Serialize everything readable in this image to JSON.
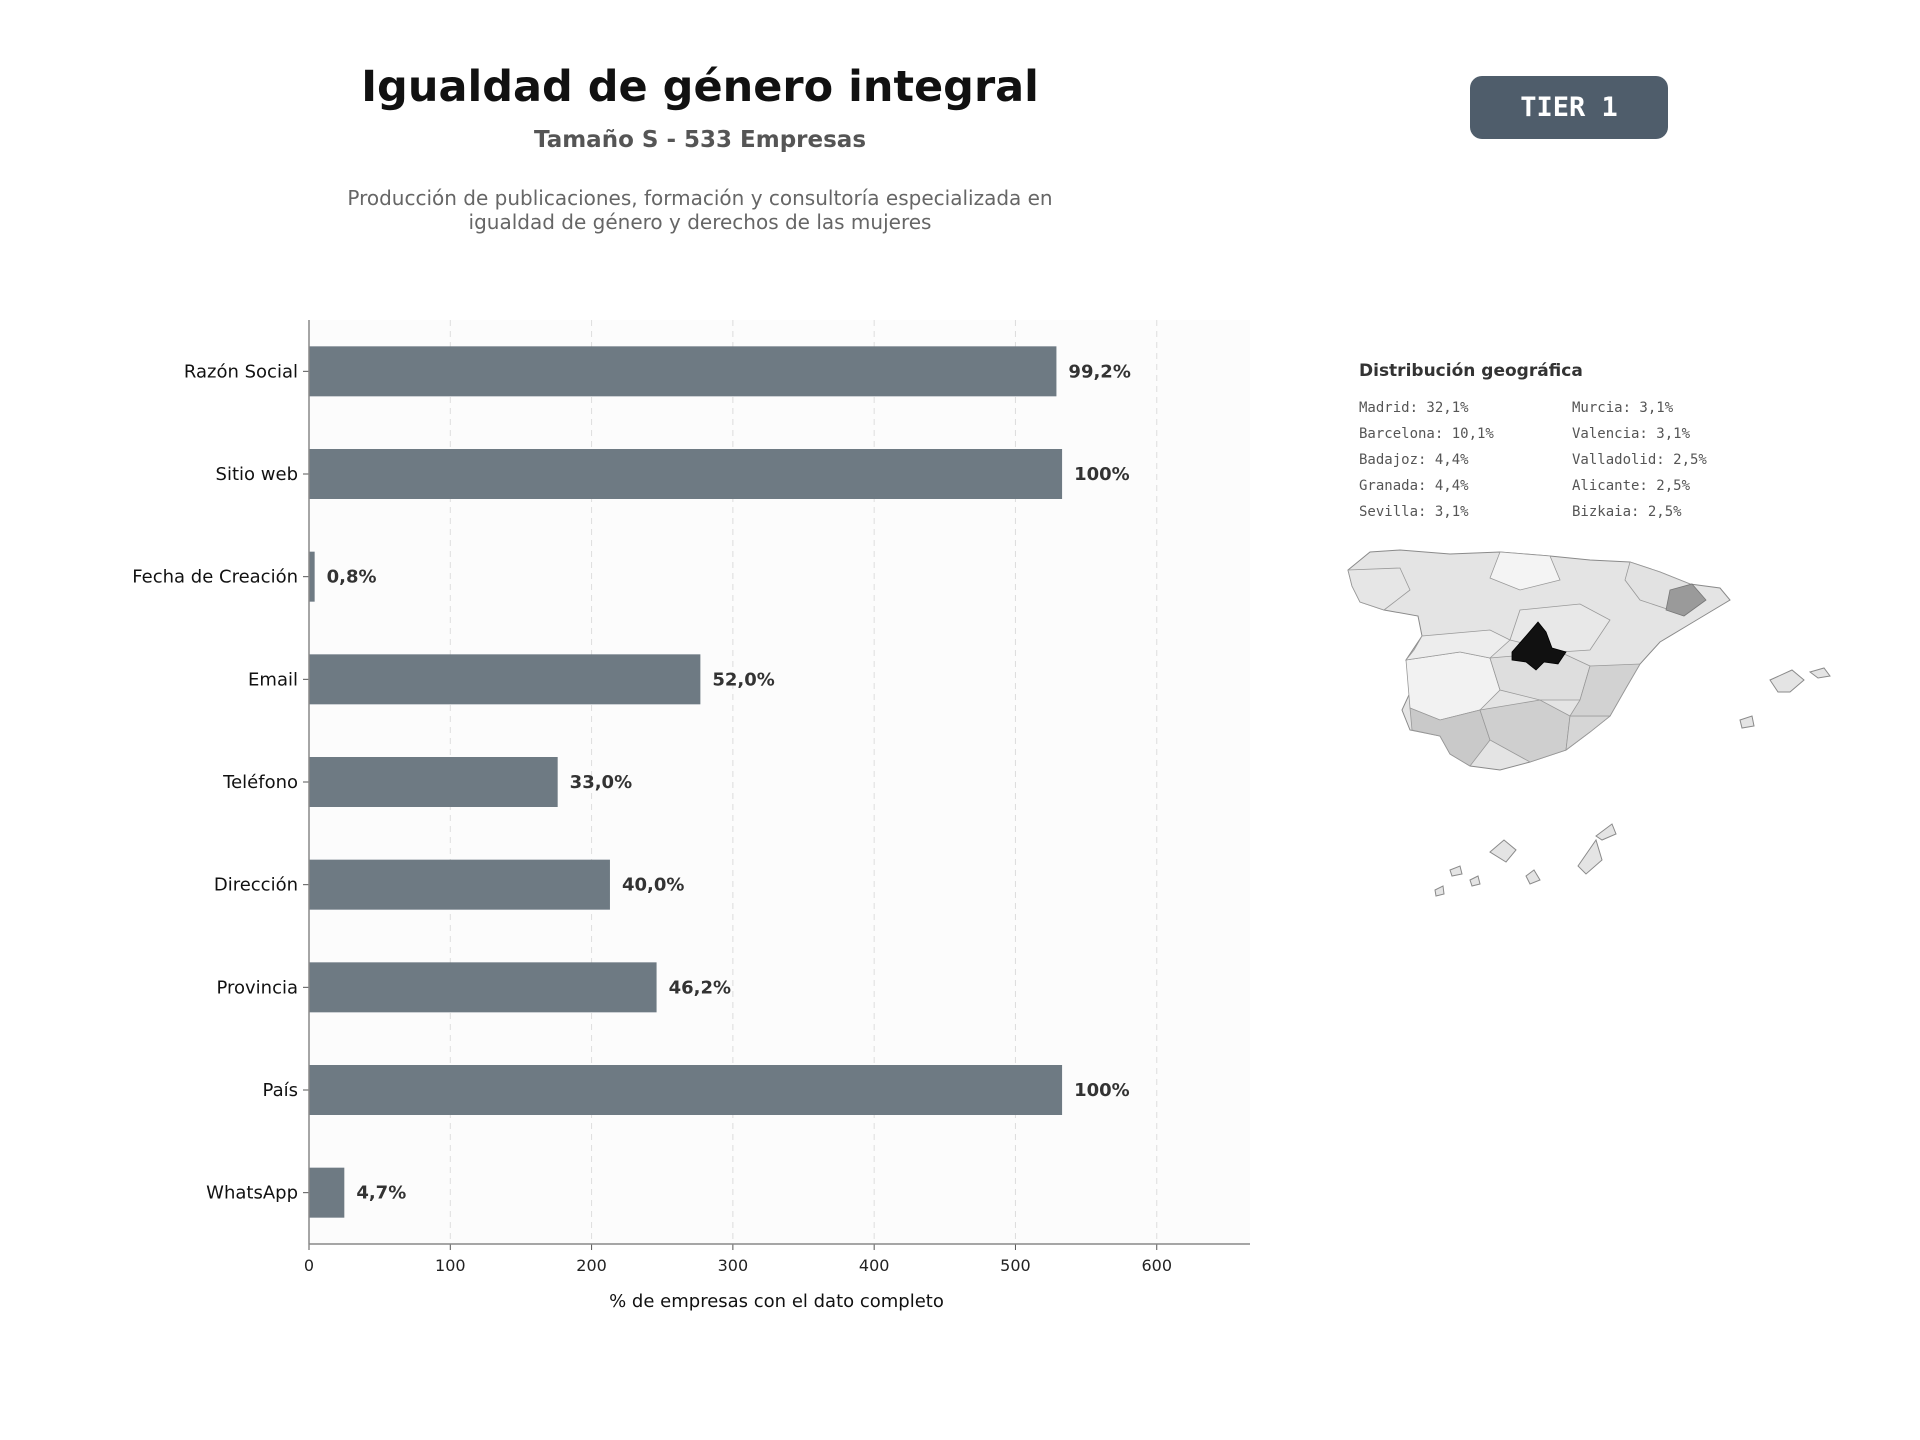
{
  "header": {
    "title": "Igualdad de género integral",
    "subtitle": "Tamaño S - 533 Empresas",
    "description_line1": "Producción de publicaciones, formación y consultoría especializada en",
    "description_line2": "igualdad de género y derechos de las mujeres",
    "tier": "TIER 1"
  },
  "chart_data": {
    "type": "bar",
    "orientation": "horizontal",
    "categories": [
      "Razón Social",
      "Sitio web",
      "Fecha de Creación",
      "Email",
      "Teléfono",
      "Dirección",
      "Provincia",
      "País",
      "WhatsApp"
    ],
    "values": [
      529,
      533,
      4,
      277,
      176,
      213,
      246,
      533,
      25
    ],
    "value_labels": [
      "99,2%",
      "100%",
      "0,8%",
      "52,0%",
      "33,0%",
      "40,0%",
      "46,2%",
      "100%",
      "4,7%"
    ],
    "xlabel": "% de empresas con el dato completo",
    "ylabel": "",
    "xlim": [
      0,
      666
    ],
    "xticks": [
      0,
      100,
      200,
      300,
      400,
      500,
      600
    ],
    "grid": "x-dashed",
    "bar_color": "#6e7a83"
  },
  "geo": {
    "title": "Distribución geográfica",
    "col1": [
      "Madrid: 32,1%",
      "Barcelona: 10,1%",
      "Badajoz: 4,4%",
      "Granada: 4,4%",
      "Sevilla: 3,1%"
    ],
    "col2": [
      "Murcia: 3,1%",
      "Valencia: 3,1%",
      "Valladolid: 2,5%",
      "Alicante: 2,5%",
      "Bizkaia: 2,5%"
    ]
  }
}
